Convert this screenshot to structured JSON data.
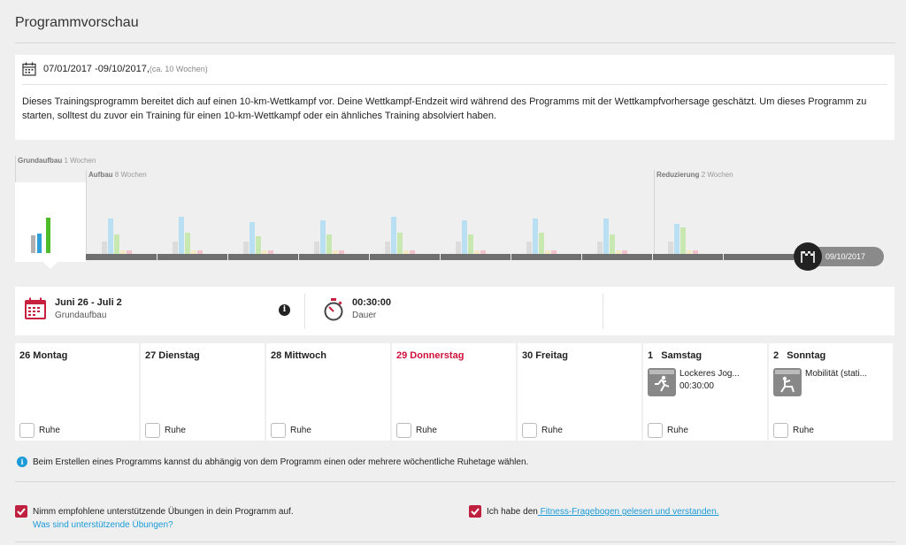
{
  "page": {
    "title": "Programmvorschau"
  },
  "summary": {
    "dates": "07/01/2017 -09/10/2017,",
    "duration": "(ca. 10 Wochen)",
    "description": "Dieses Trainingsprogramm bereitet dich auf einen 10-km-Wettkampf vor. Deine Wettkampf-Endzeit wird während des Programms mit der Wettkampfvorhersage geschätzt. Um dieses Programm zu starten, solltest du zuvor ein Training für einen 10-km-Wettkampf oder ein ähnliches Training absolviert haben."
  },
  "phases": [
    {
      "name": "Grundaufbau",
      "weeks": "1 Wochen"
    },
    {
      "name": "Aufbau",
      "weeks": "8 Wochen"
    },
    {
      "name": "Reduzierung",
      "weeks": "2 Wochen"
    }
  ],
  "timeline": {
    "end_date": "09/10/2017",
    "colors": {
      "gray": "#dcdcdc",
      "blue": "#b8dff2",
      "green": "#c9e7b0",
      "yellow": "#f3e9c4",
      "pink": "#f1c2cc",
      "sel_gray": "#b0b0b0",
      "sel_blue": "#2f9fd8",
      "sel_green": "#4dbb2a"
    }
  },
  "week": {
    "range": "Juni 26 - Juli 2",
    "phase": "Grundaufbau",
    "time": "00:30:00",
    "time_label": "Dauer",
    "info_icon": "info-icon"
  },
  "days": [
    {
      "name": "26 Montag",
      "rest": "Ruhe",
      "today": false
    },
    {
      "name": "27 Dienstag",
      "rest": "Ruhe",
      "today": false
    },
    {
      "name": "28 Mittwoch",
      "rest": "Ruhe",
      "today": false
    },
    {
      "name": "29 Donnerstag",
      "rest": "Ruhe",
      "today": true
    },
    {
      "name": "30 Freitag",
      "rest": "Ruhe",
      "today": false
    },
    {
      "name": "1   Samstag",
      "rest": "Ruhe",
      "activity": "Lockeres Jog...",
      "activity_time": "00:30:00"
    },
    {
      "name": "2   Sonntag",
      "rest": "Ruhe",
      "activity": "Mobilität (stati..."
    }
  ],
  "note": "Beim Erstellen eines Programms kannst du abhängig von dem Programm einen oder mehrere wöchentliche Ruhetage wählen.",
  "options": {
    "supporting": "Nimm empfohlene unterstützende Übungen in dein Programm auf.",
    "supporting_link": "Was sind unterstützende Übungen?",
    "fitness_prefix": "Ich habe den",
    "fitness_link": " Fitness-Fragebogen gelesen und verstanden."
  }
}
